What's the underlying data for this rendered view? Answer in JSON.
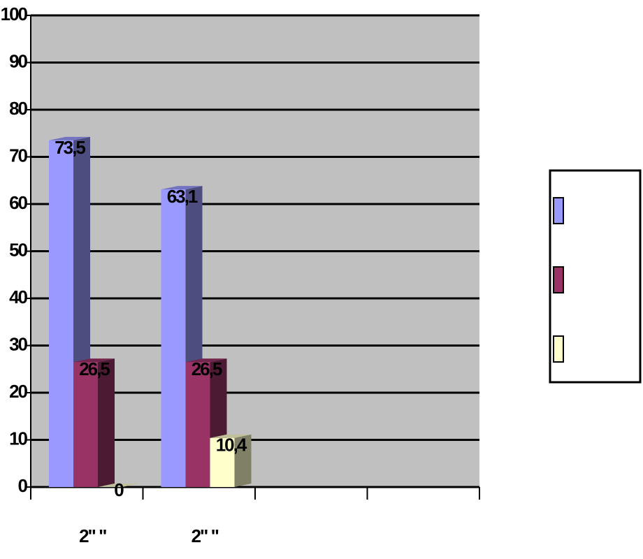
{
  "chart_data": {
    "type": "bar",
    "categories": [
      "2\" \"",
      "2\" \"",
      null,
      null
    ],
    "series": [
      {
        "color": "#9999ff",
        "values": [
          73.5,
          63.1,
          null,
          null
        ],
        "value_labels": [
          "73,5",
          "63,1",
          null,
          null
        ]
      },
      {
        "color": "#993366",
        "values": [
          26.5,
          26.5,
          null,
          null
        ],
        "value_labels": [
          "26,5",
          "26,5",
          null,
          null
        ]
      },
      {
        "color": "#ffffcc",
        "values": [
          0,
          10.4,
          null,
          null
        ],
        "value_labels": [
          "0",
          "10,4",
          null,
          null
        ]
      }
    ],
    "ylim": [
      0,
      100
    ],
    "yticks": [
      0,
      10,
      20,
      30,
      40,
      50,
      60,
      70,
      80,
      90,
      100
    ],
    "grid": true,
    "legend": "right"
  }
}
